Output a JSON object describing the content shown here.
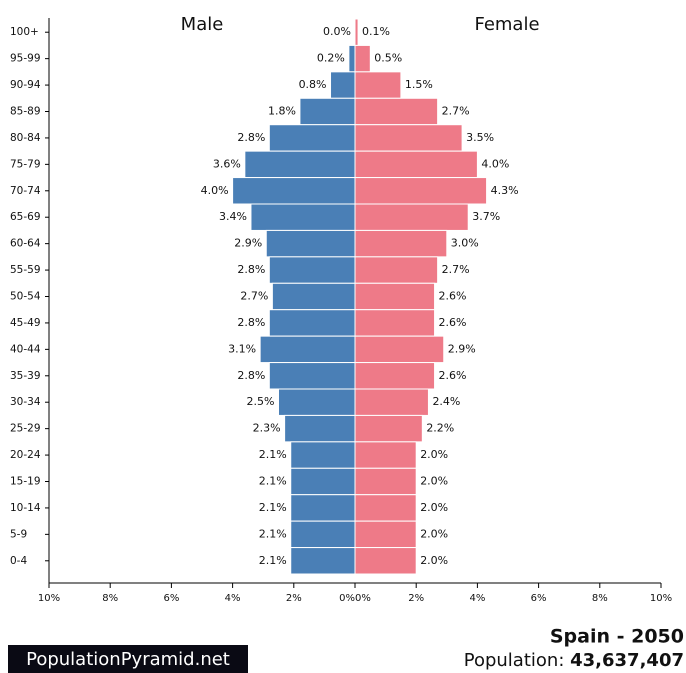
{
  "chart_data": {
    "type": "population-pyramid",
    "left_title": "Male",
    "right_title": "Female",
    "categories": [
      "100+",
      "95-99",
      "90-94",
      "85-89",
      "80-84",
      "75-79",
      "70-74",
      "65-69",
      "60-64",
      "55-59",
      "50-54",
      "45-49",
      "40-44",
      "35-39",
      "30-34",
      "25-29",
      "20-24",
      "15-19",
      "10-14",
      "5-9",
      "0-4"
    ],
    "series": [
      {
        "name": "Male",
        "color": "#4a7fb6",
        "side": "left",
        "values": [
          0.0,
          0.2,
          0.8,
          1.8,
          2.8,
          3.6,
          4.0,
          3.4,
          2.9,
          2.8,
          2.7,
          2.8,
          3.1,
          2.8,
          2.5,
          2.3,
          2.1,
          2.1,
          2.1,
          2.1,
          2.1
        ],
        "value_labels": [
          "0.0%",
          "0.2%",
          "0.8%",
          "1.8%",
          "2.8%",
          "3.6%",
          "4.0%",
          "3.4%",
          "2.9%",
          "2.8%",
          "2.7%",
          "2.8%",
          "3.1%",
          "2.8%",
          "2.5%",
          "2.3%",
          "2.1%",
          "2.1%",
          "2.1%",
          "2.1%",
          "2.1%"
        ]
      },
      {
        "name": "Female",
        "color": "#ee7a88",
        "side": "right",
        "values": [
          0.1,
          0.5,
          1.5,
          2.7,
          3.5,
          4.0,
          4.3,
          3.7,
          3.0,
          2.7,
          2.6,
          2.6,
          2.9,
          2.6,
          2.4,
          2.2,
          2.0,
          2.0,
          2.0,
          2.0,
          2.0
        ],
        "value_labels": [
          "0.1%",
          "0.5%",
          "1.5%",
          "2.7%",
          "3.5%",
          "4.0%",
          "4.3%",
          "3.7%",
          "3.0%",
          "2.7%",
          "2.6%",
          "2.6%",
          "2.9%",
          "2.6%",
          "2.4%",
          "2.2%",
          "2.0%",
          "2.0%",
          "2.0%",
          "2.0%",
          "2.0%"
        ]
      }
    ],
    "xlim": [
      0,
      10
    ],
    "xticks": [
      {
        "value": 0,
        "label": "0%"
      },
      {
        "value": 2,
        "label": "2%"
      },
      {
        "value": 4,
        "label": "4%"
      },
      {
        "value": 6,
        "label": "6%"
      },
      {
        "value": 8,
        "label": "8%"
      },
      {
        "value": 10,
        "label": "10%"
      }
    ]
  },
  "footer": {
    "brand": "PopulationPyramid.net",
    "title": "Spain - 2050",
    "population_label": "Population:",
    "population_value": "43,637,407"
  }
}
